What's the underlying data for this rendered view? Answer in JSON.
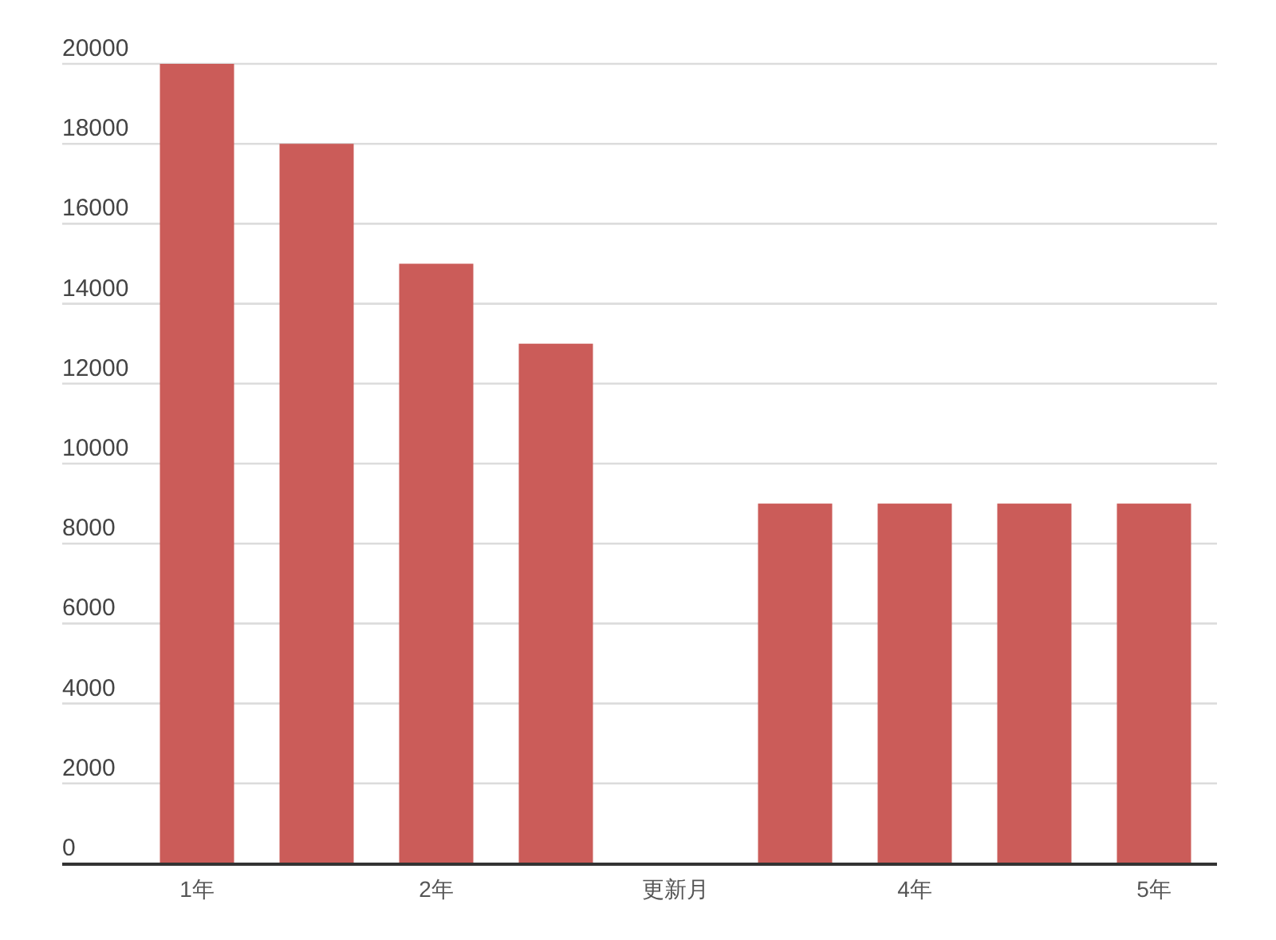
{
  "chart_data": {
    "type": "bar",
    "categories": [
      "1年",
      null,
      "2年",
      null,
      "更新月",
      null,
      "4年",
      null,
      "5年"
    ],
    "values": [
      20000,
      18000,
      15000,
      13000,
      null,
      9000,
      9000,
      9000,
      9000
    ],
    "color": "#cb5c59",
    "ylim": [
      0,
      20000
    ],
    "yticks": [
      0,
      2000,
      4000,
      6000,
      8000,
      10000,
      12000,
      14000,
      16000,
      18000,
      20000
    ],
    "grid": "y"
  }
}
